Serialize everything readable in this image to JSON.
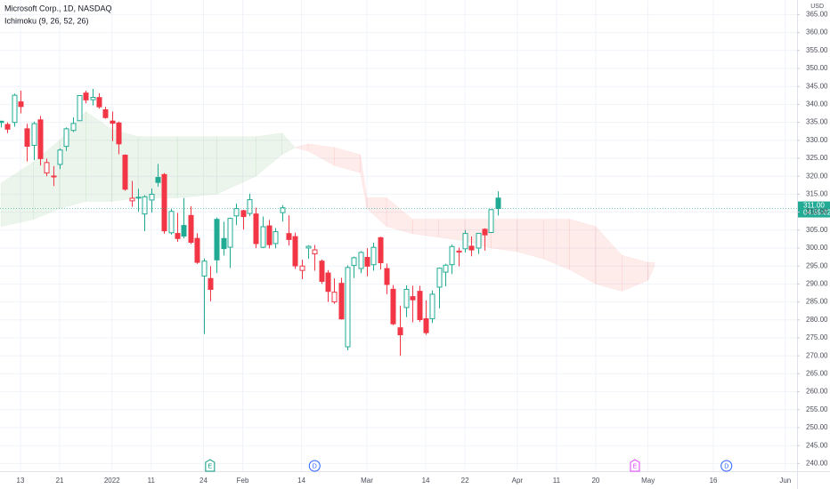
{
  "chart_data": {
    "type": "candlestick",
    "title": "Microsoft Corp., 1D, NASDAQ",
    "subtitle": "Ichimoku (9, 26, 52, 26)",
    "currency": "USD",
    "up_color": "#22ab94",
    "down_color": "#f23645",
    "x": [
      -3,
      -2,
      -1,
      0,
      1,
      2,
      3,
      4,
      5,
      6,
      7,
      8,
      9,
      10,
      11,
      12,
      13,
      14,
      15,
      16,
      17,
      18,
      19,
      20,
      21,
      22,
      23,
      24,
      25,
      26,
      27,
      28,
      29,
      30,
      31,
      32,
      33,
      34,
      35,
      36,
      37,
      38,
      39,
      40,
      41,
      42,
      43,
      44,
      45,
      46,
      47,
      48,
      49,
      50,
      51,
      52,
      53,
      54,
      55,
      56,
      57,
      58,
      59,
      60,
      61,
      62,
      63,
      64,
      65,
      66,
      67,
      68,
      69,
      70,
      71,
      72,
      73
    ],
    "open": [
      335.3,
      334.4,
      334.98,
      340.7,
      333.2,
      328.6,
      335.7,
      320.9,
      320.05,
      323.29,
      328.3,
      332.75,
      335.46,
      343.15,
      341.3,
      341.9,
      338.5,
      335.35,
      334.83,
      325.86,
      313.15,
      314.15,
      309.49,
      313.38,
      319.67,
      320.47,
      304.25,
      304.07,
      306.29,
      309.07,
      302.69,
      292.2,
      291.52,
      307.99,
      302.66,
      300.23,
      308.95,
      310.41,
      309.63,
      309.49,
      300.21,
      306.17,
      301.25,
      309.87,
      304.04,
      303.19,
      293.77,
      300.01,
      298.37,
      296.36,
      293.05,
      285.0,
      290.18,
      272.51,
      295.14,
      294.31,
      297.4,
      295.36,
      302.89,
      294.29,
      288.53,
      277.8,
      283.44,
      286.48,
      287.96,
      280.34,
      280.35,
      289.11,
      293.29,
      295.37,
      298.89,
      299.8,
      300.51,
      300.0,
      305.23,
      304.33,
      313.91
    ],
    "high": [
      335.5,
      335.0,
      343.0,
      343.8,
      334.6,
      335.2,
      336.8,
      324.9,
      322.8,
      327.73,
      333.6,
      336.39,
      342.48,
      343.81,
      344.3,
      343.1,
      339.36,
      338.0,
      335.2,
      326.07,
      318.7,
      316.5,
      314.72,
      316.61,
      323.41,
      320.88,
      310.82,
      309.8,
      313.91,
      311.65,
      304.11,
      297.11,
      294.99,
      308.5,
      307.32,
      308.48,
      312.38,
      310.63,
      315.12,
      311.23,
      308.8,
      307.84,
      305.56,
      311.93,
      309.12,
      304.29,
      296.76,
      300.8,
      300.87,
      296.8,
      293.86,
      291.54,
      291.7,
      295.16,
      297.63,
      299.14,
      299.97,
      301.47,
      303.13,
      295.66,
      289.69,
      283.96,
      289.6,
      289.51,
      289.51,
      285.4,
      288.21,
      294.57,
      295.61,
      301.0,
      300.14,
      305.0,
      303.23,
      304.2,
      305.5,
      310.8,
      315.82
    ],
    "low": [
      333.6,
      332.0,
      333.8,
      337.5,
      324.1,
      324.5,
      323.0,
      320.0,
      317.25,
      322.0,
      327.0,
      332.3,
      335.4,
      340.3,
      339.7,
      338.8,
      336.0,
      329.78,
      326.12,
      315.98,
      311.49,
      310.09,
      304.69,
      309.89,
      317.08,
      304.0,
      303.75,
      301.74,
      302.7,
      301.14,
      295.61,
      276.05,
      285.17,
      293.03,
      297.93,
      294.45,
      306.37,
      305.13,
      308.88,
      299.96,
      299.97,
      299.9,
      299.95,
      307.39,
      300.7,
      294.22,
      291.35,
      297.02,
      293.68,
      290.0,
      284.98,
      284.5,
      280.1,
      271.52,
      291.65,
      293.0,
      292.15,
      293.7,
      294.05,
      287.17,
      278.53,
      270.0,
      280.78,
      279.32,
      279.43,
      275.82,
      279.1,
      283.2,
      289.37,
      292.73,
      294.9,
      298.77,
      297.72,
      298.32,
      299.29,
      304.33,
      309.05
    ],
    "close": [
      334.97,
      333.1,
      342.54,
      339.4,
      328.34,
      334.65,
      324.9,
      323.8,
      319.91,
      327.29,
      333.2,
      334.69,
      342.45,
      341.25,
      341.95,
      339.32,
      336.32,
      334.75,
      329.01,
      316.38,
      313.88,
      314.04,
      314.27,
      314.98,
      318.27,
      304.8,
      310.2,
      302.65,
      303.33,
      301.6,
      296.03,
      296.37,
      288.49,
      296.71,
      299.84,
      308.26,
      310.98,
      308.76,
      313.46,
      301.25,
      305.94,
      300.95,
      304.56,
      311.21,
      302.38,
      295.04,
      295.0,
      300.47,
      299.5,
      290.73,
      287.93,
      287.72,
      280.27,
      294.59,
      297.31,
      298.79,
      294.95,
      300.19,
      295.92,
      289.86,
      278.91,
      275.85,
      288.5,
      285.59,
      280.07,
      276.44,
      287.15,
      294.39,
      295.22,
      300.43,
      299.16,
      304.06,
      299.49,
      304.1,
      303.68,
      310.7,
      311.0
    ],
    "cloud": {
      "up_color": "rgba(67,160,71,0.10)",
      "down_color": "rgba(244,67,54,0.10)",
      "x": [
        -3,
        2,
        6,
        10,
        14,
        18,
        24,
        30,
        36,
        40,
        42,
        44,
        48,
        52,
        53,
        56,
        60,
        64,
        68,
        72,
        76,
        80,
        84,
        88,
        92,
        96,
        97
      ],
      "span_a": [
        318,
        324,
        330,
        338,
        333,
        331,
        331,
        331,
        331,
        332,
        328,
        327,
        323,
        321,
        311,
        306,
        304,
        303,
        302,
        300,
        299,
        297,
        294,
        290,
        288,
        291,
        295
      ],
      "span_b": [
        306,
        308,
        311,
        313,
        313,
        314,
        314,
        315,
        320,
        326,
        328,
        329,
        328,
        326,
        314,
        314,
        308,
        308,
        308,
        308,
        308,
        308,
        308,
        306,
        298,
        296,
        296
      ]
    },
    "last_price": {
      "value": 311,
      "label": "311.00"
    },
    "countdown": "04:59:02",
    "events": [
      {
        "x": 29,
        "label": "E",
        "color": "#089981",
        "shape": "flag"
      },
      {
        "x": 45,
        "label": "D",
        "color": "#2962ff",
        "shape": "circle"
      },
      {
        "x": 94,
        "label": "E",
        "color": "#e040fb",
        "shape": "flag"
      },
      {
        "x": 108,
        "label": "D",
        "color": "#2962ff",
        "shape": "circle"
      }
    ],
    "xlim": [
      -3.13,
      118.8
    ],
    "xticks": [
      {
        "value": 0,
        "label": "13"
      },
      {
        "value": 6,
        "label": "21"
      },
      {
        "value": 14,
        "label": "2022"
      },
      {
        "value": 20,
        "label": "11"
      },
      {
        "value": 28,
        "label": "24"
      },
      {
        "value": 34,
        "label": "Feb"
      },
      {
        "value": 43,
        "label": "14"
      },
      {
        "value": 53,
        "label": "Mar"
      },
      {
        "value": 62,
        "label": "14"
      },
      {
        "value": 68,
        "label": "22"
      },
      {
        "value": 76,
        "label": "Apr"
      },
      {
        "value": 82,
        "label": "11"
      },
      {
        "value": 88,
        "label": "20"
      },
      {
        "value": 96,
        "label": "May"
      },
      {
        "value": 106,
        "label": "16"
      },
      {
        "value": 117,
        "label": "Jun"
      }
    ],
    "ylim": [
      237.87,
      369.06
    ],
    "yticks": [
      {
        "value": 240,
        "label": "240.00"
      },
      {
        "value": 245,
        "label": "245.00"
      },
      {
        "value": 250,
        "label": "250.00"
      },
      {
        "value": 255,
        "label": "255.00"
      },
      {
        "value": 260,
        "label": "260.00"
      },
      {
        "value": 265,
        "label": "265.00"
      },
      {
        "value": 270,
        "label": "270.00"
      },
      {
        "value": 275,
        "label": "275.00"
      },
      {
        "value": 280,
        "label": "280.00"
      },
      {
        "value": 285,
        "label": "285.00"
      },
      {
        "value": 290,
        "label": "290.00"
      },
      {
        "value": 295,
        "label": "295.00"
      },
      {
        "value": 300,
        "label": "300.00"
      },
      {
        "value": 305,
        "label": "305.00"
      },
      {
        "value": 310,
        "label": "310.00"
      },
      {
        "value": 315,
        "label": "315.00"
      },
      {
        "value": 320,
        "label": "320.00"
      },
      {
        "value": 325,
        "label": "325.00"
      },
      {
        "value": 330,
        "label": "330.00"
      },
      {
        "value": 335,
        "label": "335.00"
      },
      {
        "value": 340,
        "label": "340.00"
      },
      {
        "value": 345,
        "label": "345.00"
      },
      {
        "value": 350,
        "label": "350.00"
      },
      {
        "value": 355,
        "label": "355.00"
      },
      {
        "value": 360,
        "label": "360.00"
      },
      {
        "value": 365,
        "label": "365.00"
      }
    ],
    "grid": true
  }
}
